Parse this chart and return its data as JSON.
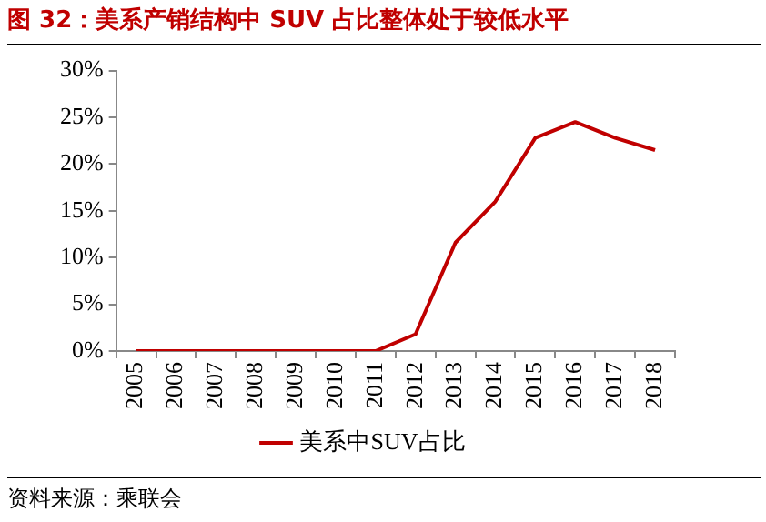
{
  "chart_data": {
    "type": "line",
    "title": "图 32：美系产销结构中 SUV 占比整体处于较低水平",
    "categories": [
      "2005",
      "2006",
      "2007",
      "2008",
      "2009",
      "2010",
      "2011",
      "2012",
      "2013",
      "2014",
      "2015",
      "2016",
      "2017",
      "2018"
    ],
    "series": [
      {
        "name": "美系中SUV占比",
        "color": "#c00000",
        "values": [
          0,
          0,
          0,
          0,
          0,
          0,
          0,
          1.8,
          11.6,
          16,
          22.8,
          24.5,
          22.8,
          21.5
        ]
      }
    ],
    "ylim": [
      0,
      30
    ],
    "yticks": [
      {
        "value": 0,
        "label": "0%"
      },
      {
        "value": 5,
        "label": "5%"
      },
      {
        "value": 10,
        "label": "10%"
      },
      {
        "value": 15,
        "label": "15%"
      },
      {
        "value": 20,
        "label": "20%"
      },
      {
        "value": 25,
        "label": "25%"
      },
      {
        "value": 30,
        "label": "30%"
      }
    ],
    "grid": false,
    "legend": "bottom",
    "marker": "none",
    "line_style": "solid",
    "annotations": [
      "资料来源：乘联会"
    ]
  }
}
